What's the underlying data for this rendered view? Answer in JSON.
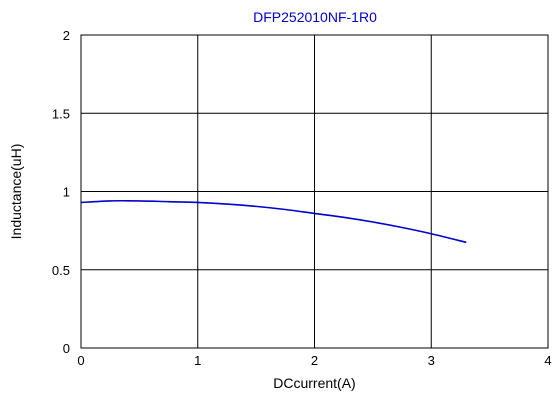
{
  "chart_data": {
    "type": "line",
    "title": "DFP252010NF-1R0",
    "xlabel": "DCcurrent(A)",
    "ylabel": "Inductance(uH)",
    "xlim": [
      0,
      4
    ],
    "ylim": [
      0,
      2
    ],
    "x_ticks": [
      0,
      1,
      2,
      3,
      4
    ],
    "y_ticks": [
      0,
      0.5,
      1,
      1.5,
      2
    ],
    "x_tick_labels": [
      "0",
      "1",
      "2",
      "3",
      "4"
    ],
    "y_tick_labels": [
      "0",
      "0.5",
      "1",
      "1.5",
      "2"
    ],
    "grid": true,
    "series": [
      {
        "color": "#0000cc",
        "x": [
          0,
          0.25,
          0.5,
          0.75,
          1.0,
          1.25,
          1.5,
          1.75,
          2.0,
          2.25,
          2.5,
          2.75,
          3.0,
          3.3
        ],
        "y": [
          0.93,
          0.94,
          0.94,
          0.935,
          0.93,
          0.92,
          0.905,
          0.885,
          0.86,
          0.835,
          0.805,
          0.77,
          0.73,
          0.675
        ]
      }
    ],
    "title_color": "#0000cc"
  }
}
